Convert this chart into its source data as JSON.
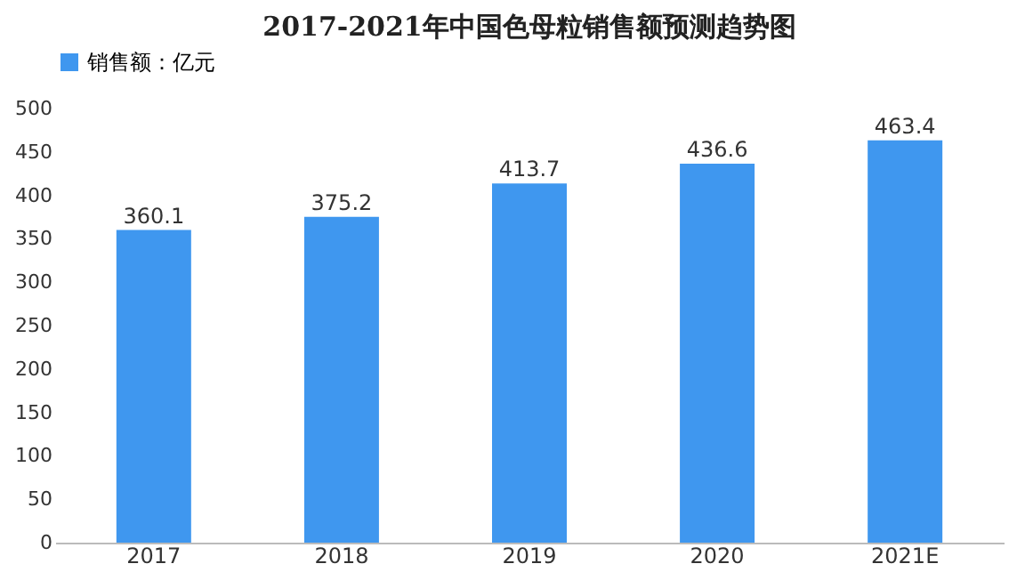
{
  "chart_data": {
    "type": "bar",
    "title": "2017-2021年中国色母粒销售额预测趋势图",
    "categories": [
      "2017",
      "2018",
      "2019",
      "2020",
      "2021E"
    ],
    "series": [
      {
        "name": "销售额：亿元",
        "color": "#3f97ef",
        "values": [
          360.1,
          375.2,
          413.7,
          436.6,
          463.4
        ]
      }
    ],
    "ylim": [
      0,
      500
    ],
    "yticks": [
      0,
      50,
      100,
      150,
      200,
      250,
      300,
      350,
      400,
      450,
      500
    ],
    "grid": false,
    "legend": "top",
    "data_labels": true
  }
}
